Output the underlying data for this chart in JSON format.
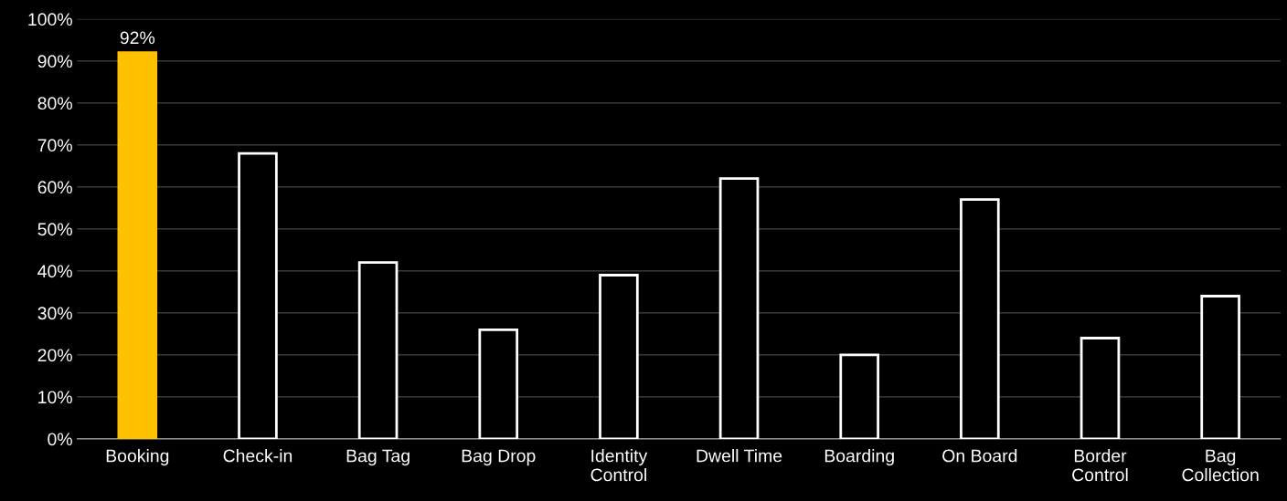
{
  "chart_data": {
    "type": "bar",
    "categories": [
      "Booking",
      "Check-in",
      "Bag Tag",
      "Bag Drop",
      "Identity\nControl",
      "Dwell Time",
      "Boarding",
      "On Board",
      "Border\nControl",
      "Bag\nCollection"
    ],
    "values": [
      92,
      68,
      42,
      26,
      39,
      62,
      20,
      57,
      24,
      34
    ],
    "colors": [
      "#ffc000",
      "#ffffff",
      "#ffffff",
      "#ffffff",
      "#ffffff",
      "#ffffff",
      "#ffffff",
      "#ffffff",
      "#ffffff",
      "#ffffff"
    ],
    "value_labels": [
      "92%",
      null,
      null,
      null,
      null,
      null,
      null,
      null,
      null,
      null
    ],
    "ylim": [
      0,
      100
    ],
    "yticks": [
      {
        "value": 0,
        "label": "0%"
      },
      {
        "value": 10,
        "label": "10%"
      },
      {
        "value": 20,
        "label": "20%"
      },
      {
        "value": 30,
        "label": "30%"
      },
      {
        "value": 40,
        "label": "40%"
      },
      {
        "value": 50,
        "label": "50%"
      },
      {
        "value": 60,
        "label": "60%"
      },
      {
        "value": 70,
        "label": "70%"
      },
      {
        "value": 80,
        "label": "80%"
      },
      {
        "value": 90,
        "label": "90%"
      },
      {
        "value": 100,
        "label": "100%"
      }
    ],
    "grid": "y"
  }
}
